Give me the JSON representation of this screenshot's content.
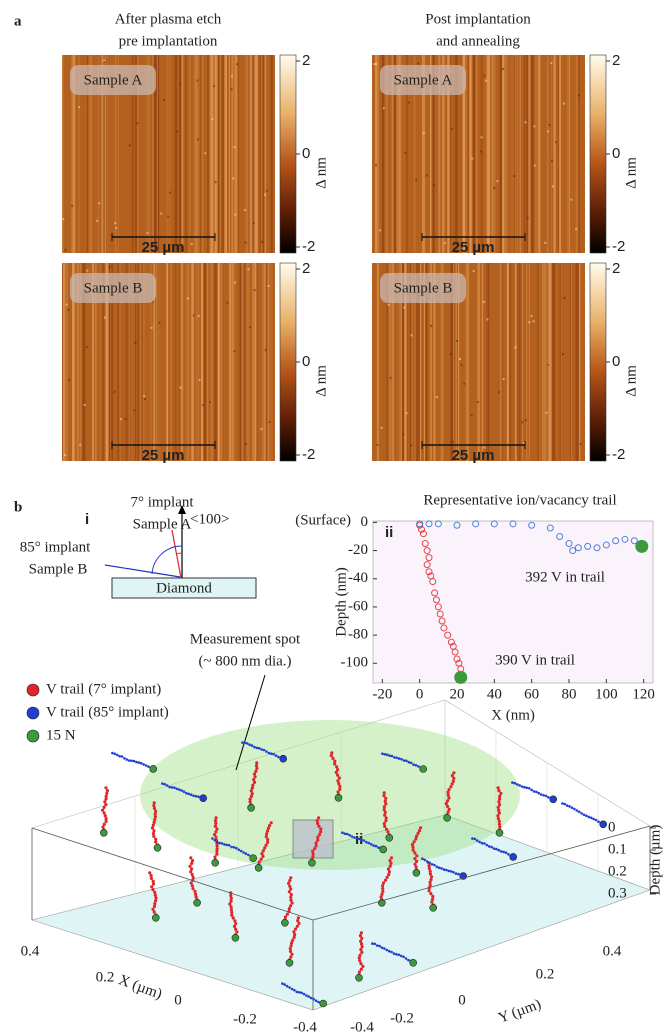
{
  "panel_a": {
    "label": "a",
    "columns": [
      {
        "title": [
          "After plasma etch",
          "pre implantation"
        ]
      },
      {
        "title": [
          "Post implantation",
          "and annealing"
        ]
      }
    ],
    "images": [
      {
        "sample": "Sample A",
        "scale_bar": "25 µm",
        "colorbar": {
          "ticks": [
            2,
            0,
            -2
          ],
          "label": "Δ nm"
        }
      },
      {
        "sample": "Sample A",
        "scale_bar": "25 µm",
        "colorbar": {
          "ticks": [
            2,
            0,
            -2
          ],
          "label": "Δ nm"
        }
      },
      {
        "sample": "Sample B",
        "scale_bar": "25 µm",
        "colorbar": {
          "ticks": [
            2,
            0,
            -2
          ],
          "label": "Δ nm"
        }
      },
      {
        "sample": "Sample B",
        "scale_bar": "25 µm",
        "colorbar": {
          "ticks": [
            2,
            0,
            -2
          ],
          "label": "Δ nm"
        }
      }
    ]
  },
  "panel_b": {
    "label": "b",
    "schematic": {
      "label": "i",
      "a_angle": "7° implant",
      "a_sample": "Sample A",
      "direction": "<100>",
      "b_angle": "85° implant",
      "b_sample": "Sample B",
      "substrate": "Diamond"
    },
    "plot3d": {
      "spot": [
        "Measurement spot",
        "(~ 800 nm dia.)"
      ],
      "legend": [
        "V trail (7° implant)",
        "V trail (85° implant)",
        "15 N"
      ],
      "inset_label": "ii",
      "x_ticks": [
        0.4,
        0.2,
        0,
        -0.2,
        -0.4
      ],
      "x_label": "X (µm)",
      "y_ticks": [
        0.4,
        0.2,
        0,
        -0.2,
        -0.4
      ],
      "y_label": "Y (µm)",
      "z_ticks": [
        0,
        0.1,
        0.2,
        0.3
      ],
      "z_label": "Depth (µm)"
    }
  },
  "chart_data": {
    "type": "scatter",
    "title": "Representative ion/vacancy trail",
    "panel_label": "ii",
    "surface_label": "(Surface)",
    "x_label": "X (nm)",
    "y_label": "Depth (nm)",
    "xlim": [
      -25,
      125
    ],
    "xticks": [
      -20,
      0,
      20,
      40,
      60,
      80,
      100,
      120
    ],
    "ylim": [
      -114,
      1
    ],
    "yticks": [
      0,
      -20,
      -40,
      -60,
      -80,
      -100
    ],
    "series": [
      {
        "color": "#e0262b",
        "marker": "ring",
        "x": [
          0,
          1,
          2,
          3,
          4,
          5,
          4,
          5,
          6,
          7,
          8,
          9,
          10,
          11,
          12,
          13,
          15,
          17,
          18,
          19,
          20,
          21,
          22
        ],
        "values": [
          -2,
          -5,
          -8,
          -15,
          -20,
          -25,
          -30,
          -35,
          -38,
          -42,
          -50,
          -55,
          -60,
          -65,
          -70,
          -75,
          -80,
          -85,
          -88,
          -92,
          -97,
          -100,
          -104
        ]
      },
      {
        "color": "#2f6fd0",
        "marker": "ring",
        "x": [
          0,
          5,
          10,
          20,
          30,
          40,
          50,
          60,
          70,
          75,
          80,
          82,
          85,
          90,
          95,
          100,
          105,
          110,
          115,
          119
        ],
        "values": [
          -1,
          -1,
          -1,
          -2,
          -1,
          -1,
          -1,
          -2,
          -4,
          -10,
          -15,
          -20,
          -18,
          -17,
          -18,
          -16,
          -13,
          -12,
          -13,
          -16
        ]
      },
      {
        "color": "#3c9a3c",
        "marker": "dot",
        "x": [
          22,
          119
        ],
        "values": [
          -110,
          -17
        ]
      }
    ],
    "annotations": [
      {
        "text": "392 V in trail",
        "color": "#2f6fd0"
      },
      {
        "text": "390 V in trail",
        "color": "#e0262b"
      }
    ]
  }
}
